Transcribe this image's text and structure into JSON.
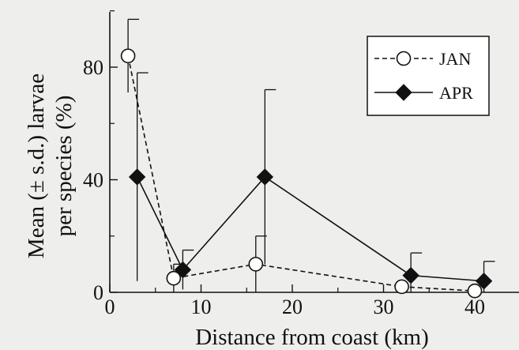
{
  "chart_data": {
    "type": "line",
    "title": "",
    "xlabel": "Distance from coast (km)",
    "ylabel_lines": [
      "Mean (± s.d.) larvae",
      "per species (%)"
    ],
    "xlim": [
      0,
      45
    ],
    "ylim": [
      0,
      100
    ],
    "xticks": [
      0,
      10,
      20,
      30,
      40
    ],
    "yticks": [
      0,
      40,
      80
    ],
    "grid": false,
    "legend_position": "top-right",
    "series": [
      {
        "name": "JAN",
        "line_style": "dashed",
        "marker": "open-circle",
        "color": "#111111",
        "x": [
          2,
          7,
          16,
          32,
          40
        ],
        "y": [
          84,
          5,
          10,
          2,
          0.5
        ],
        "err": [
          13,
          5,
          10,
          0,
          0
        ]
      },
      {
        "name": "APR",
        "line_style": "solid",
        "marker": "filled-diamond",
        "color": "#111111",
        "x": [
          3,
          8,
          17,
          33,
          41
        ],
        "y": [
          41,
          8,
          41,
          6,
          4
        ],
        "err": [
          37,
          7,
          31,
          8,
          7
        ]
      }
    ]
  }
}
